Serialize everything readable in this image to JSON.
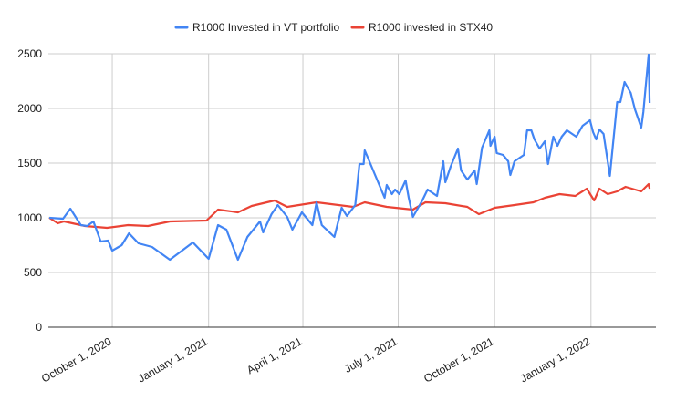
{
  "chart_data": {
    "type": "line",
    "title": "",
    "xlabel": "",
    "ylabel": "",
    "x_unit": "days since 2020-08-01",
    "x_origin": "2020-08-01",
    "xlim": [
      0,
      580
    ],
    "ylim": [
      0,
      2500
    ],
    "grid": true,
    "legend_position": "top",
    "y_ticks": [
      0,
      500,
      1000,
      1500,
      2000,
      2500
    ],
    "x_ticks": [
      {
        "day": 61,
        "label": "October 1, 2020"
      },
      {
        "day": 153,
        "label": "January 1, 2021"
      },
      {
        "day": 243,
        "label": "April 1, 2021"
      },
      {
        "day": 334,
        "label": "July 1, 2021"
      },
      {
        "day": 426,
        "label": "October 1, 2021"
      },
      {
        "day": 518,
        "label": "January 1, 2022"
      }
    ],
    "series": [
      {
        "name": "R1000 Invested in VT portfolio",
        "color": "#4285f4",
        "points": [
          [
            1,
            1000
          ],
          [
            14,
            992
          ],
          [
            21,
            1083
          ],
          [
            31,
            933
          ],
          [
            37,
            925
          ],
          [
            43,
            967
          ],
          [
            50,
            783
          ],
          [
            57,
            792
          ],
          [
            61,
            700
          ],
          [
            70,
            750
          ],
          [
            77,
            858
          ],
          [
            86,
            767
          ],
          [
            99,
            733
          ],
          [
            116,
            617
          ],
          [
            138,
            775
          ],
          [
            153,
            625
          ],
          [
            162,
            933
          ],
          [
            170,
            892
          ],
          [
            181,
            617
          ],
          [
            190,
            825
          ],
          [
            202,
            967
          ],
          [
            205,
            867
          ],
          [
            213,
            1033
          ],
          [
            219,
            1117
          ],
          [
            228,
            1008
          ],
          [
            233,
            892
          ],
          [
            242,
            1050
          ],
          [
            252,
            933
          ],
          [
            256,
            1142
          ],
          [
            261,
            933
          ],
          [
            273,
            825
          ],
          [
            280,
            1092
          ],
          [
            285,
            1017
          ],
          [
            293,
            1117
          ],
          [
            297,
            1492
          ],
          [
            301,
            1492
          ],
          [
            302,
            1617
          ],
          [
            305,
            1550
          ],
          [
            321,
            1183
          ],
          [
            323,
            1300
          ],
          [
            328,
            1217
          ],
          [
            331,
            1258
          ],
          [
            335,
            1217
          ],
          [
            341,
            1342
          ],
          [
            344,
            1183
          ],
          [
            348,
            1008
          ],
          [
            357,
            1158
          ],
          [
            362,
            1258
          ],
          [
            371,
            1200
          ],
          [
            377,
            1517
          ],
          [
            379,
            1325
          ],
          [
            384,
            1467
          ],
          [
            391,
            1633
          ],
          [
            394,
            1433
          ],
          [
            400,
            1350
          ],
          [
            407,
            1433
          ],
          [
            409,
            1308
          ],
          [
            414,
            1642
          ],
          [
            421,
            1800
          ],
          [
            422,
            1658
          ],
          [
            426,
            1742
          ],
          [
            428,
            1592
          ],
          [
            434,
            1575
          ],
          [
            439,
            1517
          ],
          [
            441,
            1392
          ],
          [
            445,
            1517
          ],
          [
            454,
            1575
          ],
          [
            457,
            1800
          ],
          [
            461,
            1800
          ],
          [
            464,
            1717
          ],
          [
            469,
            1633
          ],
          [
            474,
            1700
          ],
          [
            477,
            1492
          ],
          [
            482,
            1742
          ],
          [
            486,
            1658
          ],
          [
            490,
            1742
          ],
          [
            495,
            1800
          ],
          [
            504,
            1742
          ],
          [
            510,
            1842
          ],
          [
            517,
            1892
          ],
          [
            520,
            1783
          ],
          [
            523,
            1717
          ],
          [
            526,
            1808
          ],
          [
            530,
            1767
          ],
          [
            536,
            1383
          ],
          [
            543,
            2058
          ],
          [
            546,
            2058
          ],
          [
            550,
            2242
          ],
          [
            556,
            2142
          ],
          [
            560,
            1992
          ],
          [
            566,
            1825
          ],
          [
            568,
            1967
          ],
          [
            573,
            2492
          ],
          [
            574,
            2050
          ]
        ]
      },
      {
        "name": "R1000 invested in STX40",
        "color": "#ea4335",
        "points": [
          [
            1,
            1000
          ],
          [
            9,
            950
          ],
          [
            15,
            967
          ],
          [
            35,
            925
          ],
          [
            56,
            908
          ],
          [
            76,
            933
          ],
          [
            95,
            925
          ],
          [
            116,
            967
          ],
          [
            151,
            975
          ],
          [
            162,
            1075
          ],
          [
            181,
            1050
          ],
          [
            194,
            1108
          ],
          [
            216,
            1158
          ],
          [
            228,
            1100
          ],
          [
            256,
            1142
          ],
          [
            291,
            1100
          ],
          [
            302,
            1142
          ],
          [
            323,
            1100
          ],
          [
            348,
            1075
          ],
          [
            360,
            1142
          ],
          [
            379,
            1133
          ],
          [
            400,
            1100
          ],
          [
            411,
            1033
          ],
          [
            426,
            1092
          ],
          [
            445,
            1117
          ],
          [
            463,
            1142
          ],
          [
            474,
            1183
          ],
          [
            488,
            1217
          ],
          [
            503,
            1200
          ],
          [
            514,
            1267
          ],
          [
            521,
            1158
          ],
          [
            526,
            1267
          ],
          [
            534,
            1217
          ],
          [
            543,
            1242
          ],
          [
            551,
            1283
          ],
          [
            566,
            1242
          ],
          [
            573,
            1308
          ],
          [
            574,
            1267
          ]
        ]
      }
    ]
  }
}
